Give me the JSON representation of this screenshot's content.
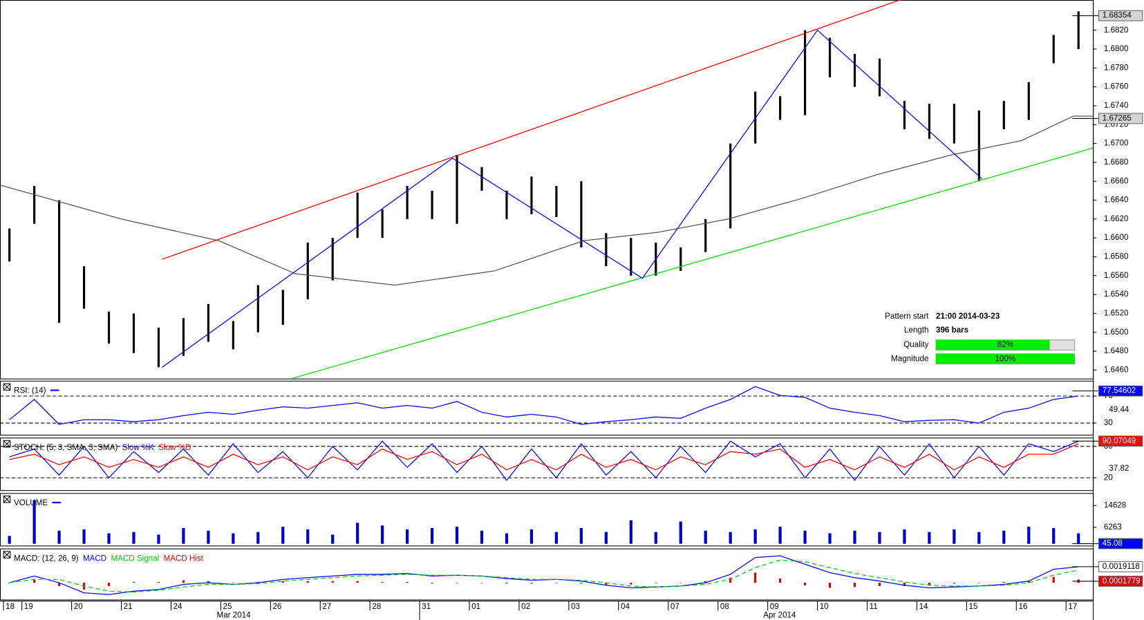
{
  "x_axis": {
    "xlim": [
      -0.44,
      21.54
    ],
    "x": [
      -0.25,
      0.25,
      0.75,
      1.25,
      1.75,
      2.25,
      2.75,
      3.25,
      3.75,
      4.25,
      4.75,
      5.25,
      5.75,
      6.25,
      6.75,
      7.25,
      7.75,
      8.25,
      8.75,
      9.25,
      9.75,
      10.25,
      10.75,
      11.25,
      11.75,
      12.25,
      12.75,
      13.25,
      13.75,
      14.25,
      14.75,
      15.25,
      15.75,
      16.25,
      16.75,
      17.25,
      17.75,
      18.25,
      18.75,
      19.25,
      19.75,
      20.25,
      20.75,
      21.25
    ],
    "xticks": [
      {
        "value": -0.37,
        "label": "18"
      },
      {
        "value": 0,
        "label": "19"
      },
      {
        "value": 1,
        "label": "20"
      },
      {
        "value": 2,
        "label": "21"
      },
      {
        "value": 3,
        "label": "24"
      },
      {
        "value": 4,
        "label": "25"
      },
      {
        "value": 5,
        "label": "26"
      },
      {
        "value": 6,
        "label": "27"
      },
      {
        "value": 7,
        "label": "28"
      },
      {
        "value": 8,
        "label": "31"
      },
      {
        "value": 9,
        "label": "01"
      },
      {
        "value": 10,
        "label": "02"
      },
      {
        "value": 11,
        "label": "03"
      },
      {
        "value": 12,
        "label": "04"
      },
      {
        "value": 13,
        "label": "07"
      },
      {
        "value": 14,
        "label": "08"
      },
      {
        "value": 15,
        "label": "09"
      },
      {
        "value": 16,
        "label": "10"
      },
      {
        "value": 17,
        "label": "11"
      },
      {
        "value": 18,
        "label": "14"
      },
      {
        "value": 19,
        "label": "15"
      },
      {
        "value": 20,
        "label": "16"
      },
      {
        "value": 21,
        "label": "17"
      }
    ],
    "months": [
      {
        "value": 4.26,
        "label": "Mar 2014"
      },
      {
        "value": 15.24,
        "label": "Apr 2014"
      }
    ]
  },
  "pattern": {
    "start_label": "Pattern start",
    "start": "21:00 2014-03-23",
    "length_label": "Length",
    "length": "396 bars",
    "quality_label": "Quality",
    "quality": 82,
    "quality_text": "82%",
    "magnitude_label": "Magnitude",
    "magnitude": 100,
    "magnitude_text": "100%"
  },
  "chart_data": [
    {
      "type": "range-bar",
      "color": "#000000",
      "ylim": [
        1.6451,
        1.6852
      ],
      "high": [
        1.661,
        1.6655,
        1.664,
        1.657,
        1.6522,
        1.652,
        1.6505,
        1.6515,
        1.653,
        1.6512,
        1.655,
        1.6545,
        1.6595,
        1.66,
        1.6648,
        1.663,
        1.6655,
        1.665,
        1.6688,
        1.6675,
        1.665,
        1.6665,
        1.6655,
        1.666,
        1.6605,
        1.66,
        1.6595,
        1.659,
        1.662,
        1.67,
        1.6755,
        1.675,
        1.682,
        1.6812,
        1.6795,
        1.679,
        1.6745,
        1.6742,
        1.6742,
        1.6735,
        1.6745,
        1.6765,
        1.6815,
        1.684
      ],
      "low": [
        1.6575,
        1.6615,
        1.651,
        1.6525,
        1.6488,
        1.6478,
        1.6463,
        1.6475,
        1.649,
        1.6482,
        1.65,
        1.6508,
        1.6535,
        1.6555,
        1.66,
        1.66,
        1.662,
        1.662,
        1.6615,
        1.665,
        1.662,
        1.6625,
        1.6622,
        1.659,
        1.657,
        1.656,
        1.656,
        1.6565,
        1.6585,
        1.661,
        1.67,
        1.6725,
        1.673,
        1.677,
        1.676,
        1.675,
        1.6715,
        1.6705,
        1.67,
        1.666,
        1.6715,
        1.6725,
        1.6785,
        1.68
      ],
      "yticks": [
        {
          "value": 1.646,
          "label": "1.6460"
        },
        {
          "value": 1.648,
          "label": "1.6480"
        },
        {
          "value": 1.65,
          "label": "1.6500"
        },
        {
          "value": 1.652,
          "label": "1.6520"
        },
        {
          "value": 1.654,
          "label": "1.6540"
        },
        {
          "value": 1.656,
          "label": "1.6560"
        },
        {
          "value": 1.658,
          "label": "1.6580"
        },
        {
          "value": 1.66,
          "label": "1.6600"
        },
        {
          "value": 1.662,
          "label": "1.6620"
        },
        {
          "value": 1.664,
          "label": "1.6640"
        },
        {
          "value": 1.666,
          "label": "1.6660"
        },
        {
          "value": 1.668,
          "label": "1.6680"
        },
        {
          "value": 1.67,
          "label": "1.6700"
        },
        {
          "value": 1.672,
          "label": "1.6720"
        },
        {
          "value": 1.674,
          "label": "1.6740"
        },
        {
          "value": 1.676,
          "label": "1.6760"
        },
        {
          "value": 1.678,
          "label": "1.6780"
        },
        {
          "value": 1.68,
          "label": "1.6800"
        },
        {
          "value": 1.682,
          "label": "1.6820"
        }
      ],
      "overlays": [
        {
          "color": "#555555",
          "x": [
            -0.44,
            2,
            3.96,
            5.5,
            7.5,
            9.5,
            11.3,
            12.8,
            14.2,
            15.7,
            17.2,
            18.7,
            20.1,
            21.15,
            21.54
          ],
          "values": [
            1.6656,
            1.662,
            1.6597,
            1.6562,
            1.655,
            1.6565,
            1.6597,
            1.6606,
            1.662,
            1.6642,
            1.6667,
            1.6688,
            1.6703,
            1.6729,
            1.6729
          ]
        },
        {
          "color": "#ff0000",
          "x": [
            2.82,
            17.69
          ],
          "values": [
            1.65774,
            1.68526
          ]
        },
        {
          "color": "#00dd00",
          "x": [
            5.43,
            21.54
          ],
          "values": [
            1.6451,
            1.66952
          ]
        },
        {
          "color": "#0000ff",
          "x": [
            2.82,
            8.66,
            12.48,
            16.0,
            19.31
          ],
          "values": [
            1.6463,
            1.66844,
            1.65572,
            1.682,
            1.66626
          ]
        }
      ],
      "badges": [
        {
          "value": 1.68354,
          "color": "#d4d4d4",
          "text_color": "#000000"
        },
        {
          "value": 1.67265,
          "color": "#d4d4d4",
          "text_color": "#000000"
        }
      ]
    },
    {
      "type": "line",
      "title": "RSI: (14)",
      "ylim": [
        12.7,
        92.7
      ],
      "yticks": [
        30,
        70
      ],
      "grid": true,
      "mid_label": 49.44,
      "series": [
        {
          "color": "#0000ff",
          "values": [
            35,
            65,
            28,
            35,
            35,
            32,
            35,
            41,
            46,
            43,
            49,
            54,
            52,
            56,
            60,
            52,
            56,
            52,
            62,
            46,
            39,
            43,
            39,
            28,
            32,
            35,
            39,
            37,
            52,
            65,
            84,
            71,
            68,
            52,
            46,
            41,
            32,
            34,
            35,
            30,
            46,
            52,
            65,
            70
          ]
        }
      ],
      "badges": [
        {
          "value": 77.54602,
          "color": "#0000ff",
          "text_color": "#ffffff"
        }
      ]
    },
    {
      "type": "line",
      "title": "STOCH: (5, 3, SMA, 3, SMA)",
      "ylim": [
        -3.7,
        96.7
      ],
      "yticks": [
        20,
        80
      ],
      "grid": true,
      "mid_label": 37.82,
      "series": [
        {
          "name": "Slow %K",
          "color": "#0000ff",
          "values": [
            60,
            75,
            25,
            80,
            20,
            70,
            30,
            75,
            25,
            85,
            30,
            70,
            20,
            80,
            35,
            90,
            40,
            85,
            30,
            80,
            15,
            75,
            20,
            85,
            25,
            70,
            20,
            80,
            30,
            90,
            60,
            85,
            20,
            75,
            15,
            80,
            25,
            85,
            20,
            80,
            25,
            85,
            70,
            90
          ]
        },
        {
          "name": "Slow %D",
          "color": "#ff0000",
          "values": [
            55,
            65,
            45,
            60,
            40,
            55,
            40,
            60,
            40,
            65,
            45,
            60,
            35,
            60,
            45,
            75,
            55,
            70,
            45,
            65,
            35,
            55,
            35,
            65,
            40,
            55,
            35,
            60,
            45,
            70,
            65,
            75,
            40,
            55,
            35,
            60,
            40,
            65,
            35,
            60,
            40,
            65,
            65,
            85
          ]
        }
      ],
      "badges": [
        {
          "value": 90.07049,
          "color": "#ff0000",
          "text_color": "#ffffff"
        }
      ]
    },
    {
      "type": "bar",
      "title": "VOLUME",
      "ylim": [
        -700,
        19368
      ],
      "yticks": [
        6263,
        14628
      ],
      "grid": false,
      "series": [
        {
          "color": "#0000cc",
          "values": [
            3000,
            16700,
            5000,
            5500,
            4000,
            4500,
            3500,
            6000,
            5000,
            4000,
            4500,
            6500,
            5500,
            3500,
            8000,
            7000,
            5500,
            6000,
            6500,
            5000,
            4000,
            5500,
            4500,
            6000,
            4500,
            9000,
            4500,
            8500,
            5000,
            4500,
            5500,
            6500,
            5000,
            4000,
            5000,
            4500,
            5500,
            4500,
            5500,
            4500,
            5000,
            6500,
            6000,
            4000
          ]
        }
      ],
      "badges": [
        {
          "value": 45.08,
          "color": "#0000ff",
          "text_color": "#ffffff"
        }
      ]
    },
    {
      "type": "line",
      "title": "MACD: (12, 26, 9)",
      "ylim": [
        -0.002,
        0.00407
      ],
      "yticks": [],
      "grid": false,
      "series": [
        {
          "name": "MACD Hist",
          "type": "bar",
          "color": "#dd0000",
          "values": [
            0,
            0.0004,
            -0.0004,
            -0.0008,
            -0.0004,
            0.0001,
            0.0001,
            0.0003,
            0.0002,
            0,
            0.0001,
            0.0002,
            0.0002,
            0.0002,
            0.0002,
            0.0001,
            0.0001,
            -0.0001,
            0,
            0,
            -0.0001,
            -0.0001,
            0,
            -0.0001,
            -0.0003,
            -0.0002,
            0,
            0,
            0.0002,
            0.0006,
            0.0012,
            0.0005,
            -0.0003,
            -0.0006,
            -0.0005,
            -0.0004,
            -0.0004,
            -0.0003,
            -0.0001,
            0,
            0.0001,
            0.0002,
            0.0007,
            0.0004
          ]
        },
        {
          "name": "MACD",
          "color": "#0000ff",
          "values": [
            0,
            0.0008,
            0,
            -0.0012,
            -0.0014,
            -0.001,
            -0.0008,
            -0.0002,
            0,
            -0.0002,
            0,
            0.0004,
            0.0006,
            0.0008,
            0.001,
            0.001,
            0.0011,
            0.0008,
            0.0009,
            0.0008,
            0.0005,
            0.0003,
            0.0004,
            0.0002,
            -0.0003,
            -0.0006,
            -0.0005,
            -0.0004,
            0,
            0.001,
            0.003,
            0.0032,
            0.0022,
            0.0012,
            0.0006,
            0.0002,
            -0.0003,
            -0.0006,
            -0.0005,
            -0.0004,
            -0.0002,
            0.0002,
            0.0016,
            0.0019
          ]
        },
        {
          "name": "MACD Signal",
          "color": "#00cc00",
          "dash": true,
          "values": [
            0,
            0.0004,
            0.0004,
            -0.0004,
            -0.001,
            -0.0011,
            -0.0009,
            -0.0005,
            -0.0002,
            -0.0002,
            -0.0001,
            0.0002,
            0.0004,
            0.0006,
            0.0008,
            0.0009,
            0.001,
            0.0009,
            0.0009,
            0.0008,
            0.0006,
            0.0004,
            0.0004,
            0.0003,
            0,
            -0.0004,
            -0.0005,
            -0.0004,
            -0.0002,
            0.0004,
            0.0018,
            0.0027,
            0.0025,
            0.0018,
            0.0011,
            0.0006,
            0.0001,
            -0.0003,
            -0.0004,
            -0.0004,
            -0.0003,
            0,
            0.0009,
            0.0015
          ]
        }
      ],
      "legend_order": [
        1,
        2,
        0
      ],
      "badges": [
        {
          "value": 0.0019118,
          "color": "#ffffff",
          "text_color": "#000000"
        },
        {
          "value": 0.0001779,
          "color": "#dd0000",
          "text_color": "#ffffff"
        }
      ]
    }
  ]
}
